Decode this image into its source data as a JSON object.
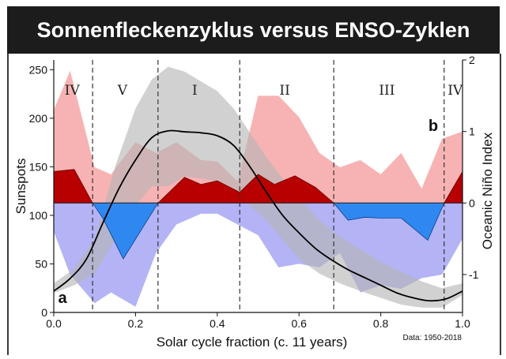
{
  "title": "Sonnenfleckenzyklus versus ENSO-Zyklen",
  "note": "Data: 1950-2018",
  "colors": {
    "oni_pos_band": "#f7b3b3",
    "oni_pos_fill": "#b80000",
    "oni_neg_band": "#b3b3f5",
    "oni_neg_fill": "#2f88f0",
    "sunspot_band": "#b5b5b5",
    "sunspot_line": "#000000",
    "banner_bg": "#1c1c1c"
  },
  "chart_data": {
    "type": "area",
    "title": "Sonnenfleckenzyklus versus ENSO-Zyklen",
    "xlabel": "Solar cycle fraction (c. 11 years)",
    "ylabel_left": "Sunspots",
    "ylabel_right": "Oceanic Niño Index",
    "xlim": [
      0,
      1
    ],
    "ylim_left": [
      0,
      260
    ],
    "ylim_right": [
      -1.53,
      2
    ],
    "x_ticks": [
      "0.0",
      "0.2",
      "0.4",
      "0.6",
      "0.8",
      "1.0"
    ],
    "y_ticks_left": [
      "0",
      "50",
      "100",
      "150",
      "200",
      "250"
    ],
    "y_ticks_right": [
      "-1",
      "0",
      "1",
      "2"
    ],
    "panel_labels": {
      "left": "a",
      "right": "b"
    },
    "phase_boundaries": [
      0.095,
      0.255,
      0.455,
      0.685,
      0.955
    ],
    "phases": [
      {
        "label": "IV",
        "x": 0.045
      },
      {
        "label": "V",
        "x": 0.168
      },
      {
        "label": "I",
        "x": 0.345
      },
      {
        "label": "II",
        "x": 0.565
      },
      {
        "label": "III",
        "x": 0.815
      },
      {
        "label": "IV",
        "x": 0.982
      }
    ],
    "sunspot_mean": {
      "x": [
        0,
        0.04,
        0.08,
        0.12,
        0.16,
        0.2,
        0.24,
        0.28,
        0.32,
        0.36,
        0.4,
        0.44,
        0.48,
        0.52,
        0.56,
        0.6,
        0.64,
        0.68,
        0.72,
        0.76,
        0.8,
        0.84,
        0.88,
        0.92,
        0.96,
        1.0
      ],
      "y": [
        22,
        35,
        55,
        92,
        128,
        157,
        180,
        187,
        186,
        185,
        182,
        172,
        150,
        124,
        100,
        82,
        66,
        54,
        44,
        36,
        28,
        20,
        15,
        12,
        14,
        22
      ]
    },
    "sunspot_band": {
      "x": [
        0,
        0.05,
        0.1,
        0.15,
        0.2,
        0.24,
        0.28,
        0.32,
        0.36,
        0.4,
        0.44,
        0.48,
        0.52,
        0.56,
        0.6,
        0.65,
        0.7,
        0.75,
        0.8,
        0.85,
        0.9,
        0.95,
        1.0
      ],
      "upper": [
        30,
        45,
        75,
        150,
        210,
        240,
        253,
        248,
        238,
        228,
        210,
        185,
        160,
        138,
        118,
        95,
        78,
        65,
        52,
        42,
        32,
        25,
        30
      ],
      "lower": [
        20,
        28,
        40,
        75,
        110,
        130,
        130,
        140,
        138,
        135,
        125,
        110,
        95,
        75,
        55,
        40,
        30,
        22,
        15,
        8,
        5,
        5,
        18
      ]
    },
    "oni_mean": {
      "x": [
        0,
        0.05,
        0.095,
        0.12,
        0.17,
        0.255,
        0.32,
        0.36,
        0.4,
        0.455,
        0.5,
        0.54,
        0.59,
        0.64,
        0.685,
        0.72,
        0.76,
        0.8,
        0.85,
        0.89,
        0.915,
        0.955,
        1.0
      ],
      "y": [
        0.44,
        0.47,
        0,
        -0.21,
        -0.78,
        0,
        0.36,
        0.26,
        0.31,
        0.15,
        0.4,
        0.26,
        0.38,
        0.22,
        0,
        -0.24,
        -0.2,
        -0.21,
        -0.21,
        -0.4,
        -0.52,
        0,
        0.44
      ]
    },
    "oni_pos_band": {
      "x": [
        0,
        0.04,
        0.1,
        0.14,
        0.2,
        0.25,
        0.3,
        0.36,
        0.4,
        0.45,
        0.5,
        0.55,
        0.6,
        0.65,
        0.7,
        0.75,
        0.8,
        0.85,
        0.9,
        0.95,
        1.0
      ],
      "y": [
        1.3,
        1.85,
        0.5,
        0.4,
        0.85,
        0.7,
        0.85,
        0.6,
        0.58,
        0.3,
        1.5,
        1.5,
        1.2,
        0.7,
        0.5,
        0.6,
        0.4,
        0.7,
        0.2,
        0.9,
        1.0
      ]
    },
    "oni_neg_band": {
      "x": [
        0,
        0.04,
        0.1,
        0.14,
        0.2,
        0.25,
        0.3,
        0.36,
        0.4,
        0.45,
        0.5,
        0.55,
        0.6,
        0.65,
        0.7,
        0.75,
        0.8,
        0.85,
        0.9,
        0.95,
        1.0
      ],
      "y": [
        -0.4,
        -1.0,
        -1.4,
        -1.25,
        -1.45,
        -0.7,
        -0.3,
        -0.15,
        -0.15,
        -0.3,
        -0.45,
        -0.9,
        -0.85,
        -0.9,
        -0.7,
        -1.25,
        -1.15,
        -1.2,
        -1.05,
        -1.0,
        -0.5
      ]
    }
  }
}
